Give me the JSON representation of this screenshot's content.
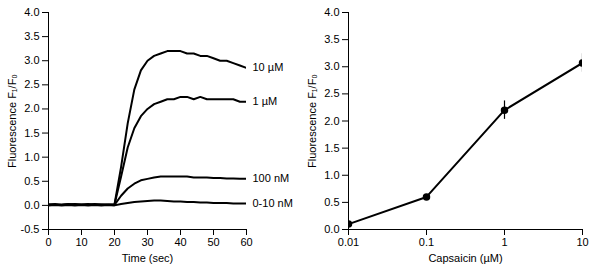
{
  "chart_data": [
    {
      "type": "line",
      "x_label": "Time (sec)",
      "y_label": "Fluorescence F₁/F₀",
      "x": [
        0,
        2,
        4,
        6,
        8,
        10,
        12,
        14,
        16,
        18,
        20,
        22,
        24,
        26,
        28,
        30,
        32,
        34,
        36,
        38,
        40,
        42,
        44,
        46,
        48,
        50,
        52,
        54,
        56,
        58,
        60
      ],
      "xlim": [
        0,
        60
      ],
      "xticks": [
        0,
        10,
        20,
        30,
        40,
        50,
        60
      ],
      "ylim": [
        -0.5,
        4.0
      ],
      "yticks": [
        -0.5,
        {
          "value": 0,
          "label": "0.0"
        },
        0.5,
        {
          "value": 1,
          "label": "1.0"
        },
        1.5,
        {
          "value": 2,
          "label": "2.0"
        },
        2.5,
        {
          "value": 3,
          "label": "3.0"
        },
        3.5,
        {
          "value": 4,
          "label": "4.0"
        }
      ],
      "grid": false,
      "series": [
        {
          "name": "10 µM",
          "color": "#000000",
          "values": [
            0.02,
            0.03,
            0.01,
            0.02,
            0.03,
            0.02,
            0.03,
            0.01,
            0.02,
            0.02,
            0.02,
            0.8,
            1.7,
            2.4,
            2.8,
            3.0,
            3.1,
            3.15,
            3.2,
            3.2,
            3.2,
            3.15,
            3.15,
            3.1,
            3.1,
            3.05,
            3.0,
            3.0,
            2.95,
            2.9,
            2.85
          ]
        },
        {
          "name": "1 µM",
          "color": "#000000",
          "values": [
            0.02,
            0.01,
            0.02,
            0.03,
            0.02,
            0.01,
            0.02,
            0.03,
            0.02,
            0.01,
            0.02,
            0.6,
            1.2,
            1.6,
            1.85,
            2.0,
            2.1,
            2.15,
            2.2,
            2.2,
            2.25,
            2.25,
            2.2,
            2.25,
            2.2,
            2.2,
            2.2,
            2.2,
            2.2,
            2.15,
            2.15
          ]
        },
        {
          "name": "100 nM",
          "color": "#000000",
          "values": [
            0.01,
            0.02,
            0.01,
            0.02,
            0.01,
            0.02,
            0.01,
            0.02,
            0.01,
            0.02,
            0.01,
            0.2,
            0.35,
            0.45,
            0.52,
            0.55,
            0.58,
            0.6,
            0.6,
            0.6,
            0.6,
            0.6,
            0.58,
            0.58,
            0.58,
            0.57,
            0.57,
            0.56,
            0.56,
            0.55,
            0.55
          ]
        },
        {
          "name": "0-10 nM",
          "color": "#000000",
          "values": [
            0.0,
            0.01,
            0.0,
            0.01,
            0.0,
            0.01,
            0.0,
            0.01,
            0.0,
            0.01,
            0.0,
            0.03,
            0.05,
            0.07,
            0.08,
            0.09,
            0.1,
            0.1,
            0.09,
            0.08,
            0.08,
            0.07,
            0.07,
            0.06,
            0.06,
            0.05,
            0.05,
            0.05,
            0.04,
            0.04,
            0.04
          ]
        }
      ]
    },
    {
      "type": "line",
      "x_label": "Capsaicin (µM)",
      "y_label": "Fluorescence F₁/F₀",
      "log": "x",
      "marker": "circle",
      "x": [
        0.01,
        0.1,
        1,
        10
      ],
      "xlim": [
        0.01,
        10
      ],
      "xticks": [
        0.01,
        0.1,
        1,
        10
      ],
      "ylim": [
        0,
        4.0
      ],
      "yticks": [
        {
          "value": 0,
          "label": "0.0"
        },
        0.5,
        {
          "value": 1,
          "label": "1.0"
        },
        1.5,
        {
          "value": 2,
          "label": "2.0"
        },
        2.5,
        {
          "value": 3,
          "label": "3.0"
        },
        3.5,
        {
          "value": 4,
          "label": "4.0"
        }
      ],
      "grid": false,
      "series": [
        {
          "color": "#000000",
          "values": [
            0.1,
            0.6,
            2.2,
            3.07
          ],
          "errors": [
            0.02,
            0.03,
            0.17,
            0.17
          ]
        }
      ]
    }
  ]
}
